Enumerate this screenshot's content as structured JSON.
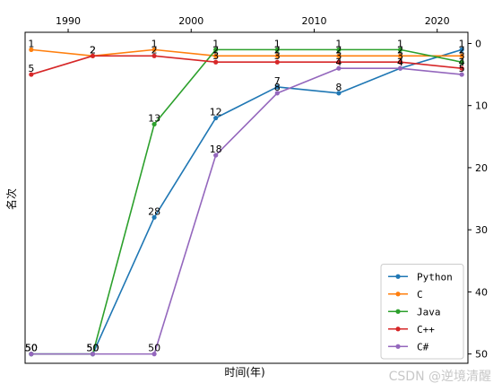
{
  "chart_data": {
    "type": "line",
    "title": "",
    "xlabel": "时间(年)",
    "ylabel": "名次",
    "x_axis_position": "top",
    "y_axis_position": "right",
    "y_inverted": true,
    "xlim": [
      1986.5,
      2022.5
    ],
    "ylim": [
      51.5,
      -1.8
    ],
    "x_ticks": [
      1990,
      2000,
      2010,
      2020
    ],
    "y_ticks": [
      0,
      10,
      20,
      30,
      40,
      50
    ],
    "grid": false,
    "legend_position": "lower-right",
    "x": [
      1987,
      1992,
      1997,
      2002,
      2007,
      2012,
      2017,
      2022
    ],
    "series": [
      {
        "name": "Python",
        "color": "#1f77b4",
        "values": [
          50,
          50,
          28,
          12,
          7,
          8,
          4,
          1
        ]
      },
      {
        "name": "C",
        "color": "#ff7f0e",
        "values": [
          1,
          2,
          1,
          2,
          2,
          2,
          2,
          2
        ]
      },
      {
        "name": "Java",
        "color": "#2ca02c",
        "values": [
          50,
          50,
          13,
          1,
          1,
          1,
          1,
          3
        ]
      },
      {
        "name": "C++",
        "color": "#d62728",
        "values": [
          5,
          2,
          2,
          3,
          3,
          3,
          3,
          4
        ]
      },
      {
        "name": "C#",
        "color": "#9467bd",
        "values": [
          50,
          50,
          50,
          18,
          8,
          4,
          4,
          5
        ]
      }
    ]
  },
  "watermark": "CSDN @逆境清醒"
}
